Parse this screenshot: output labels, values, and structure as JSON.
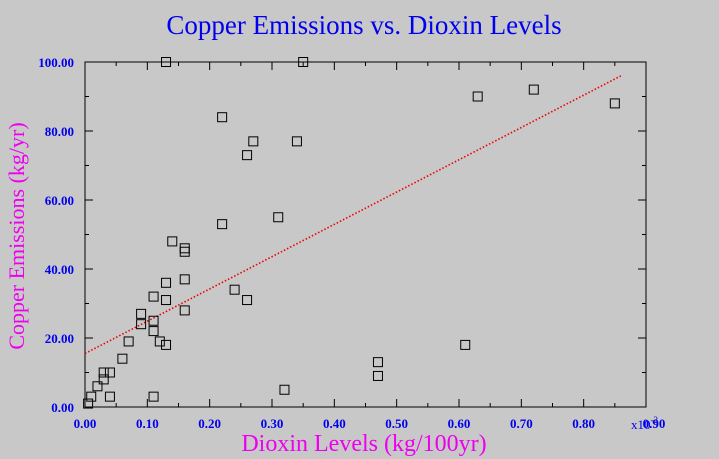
{
  "chart_data": {
    "type": "scatter",
    "title": "Copper Emissions vs. Dioxin Levels",
    "xlabel": "Dioxin Levels (kg/100yr)",
    "ylabel": "Copper Emissions (kg/yr)",
    "xlim": [
      0,
      0.9
    ],
    "ylim": [
      0,
      100
    ],
    "x_multiplier": "x10",
    "x_multiplier_exp": "-2",
    "x_ticks": [
      "0.00",
      "0.10",
      "0.20",
      "0.30",
      "0.40",
      "0.50",
      "0.60",
      "0.70",
      "0.80",
      "0.90"
    ],
    "y_ticks": [
      "0.00",
      "20.00",
      "40.00",
      "60.00",
      "80.00",
      "100.00"
    ],
    "colors": {
      "title": "#0000ee",
      "axis_label": "#ee00ee",
      "ticks": "#0000ee",
      "trend": "#ee0000",
      "marker": "#000000"
    },
    "series": [
      {
        "marker": "open-square",
        "points": [
          [
            0.005,
            1
          ],
          [
            0.01,
            3
          ],
          [
            0.02,
            6
          ],
          [
            0.03,
            8
          ],
          [
            0.03,
            10
          ],
          [
            0.04,
            10
          ],
          [
            0.04,
            3
          ],
          [
            0.06,
            14
          ],
          [
            0.07,
            19
          ],
          [
            0.09,
            24
          ],
          [
            0.09,
            27
          ],
          [
            0.11,
            3
          ],
          [
            0.11,
            22
          ],
          [
            0.11,
            25
          ],
          [
            0.11,
            32
          ],
          [
            0.12,
            19
          ],
          [
            0.13,
            18
          ],
          [
            0.13,
            31
          ],
          [
            0.13,
            36
          ],
          [
            0.13,
            100
          ],
          [
            0.14,
            48
          ],
          [
            0.16,
            28
          ],
          [
            0.16,
            37
          ],
          [
            0.16,
            45
          ],
          [
            0.16,
            46
          ],
          [
            0.22,
            53
          ],
          [
            0.22,
            84
          ],
          [
            0.24,
            34
          ],
          [
            0.26,
            31
          ],
          [
            0.26,
            73
          ],
          [
            0.27,
            77
          ],
          [
            0.31,
            55
          ],
          [
            0.32,
            5
          ],
          [
            0.34,
            77
          ],
          [
            0.35,
            100
          ],
          [
            0.47,
            9
          ],
          [
            0.47,
            13
          ],
          [
            0.61,
            18
          ],
          [
            0.63,
            90
          ],
          [
            0.72,
            92
          ],
          [
            0.85,
            88
          ]
        ]
      }
    ],
    "trendline": {
      "style": "dotted",
      "x": [
        0.0,
        0.86
      ],
      "y": [
        15.5,
        96
      ]
    }
  }
}
